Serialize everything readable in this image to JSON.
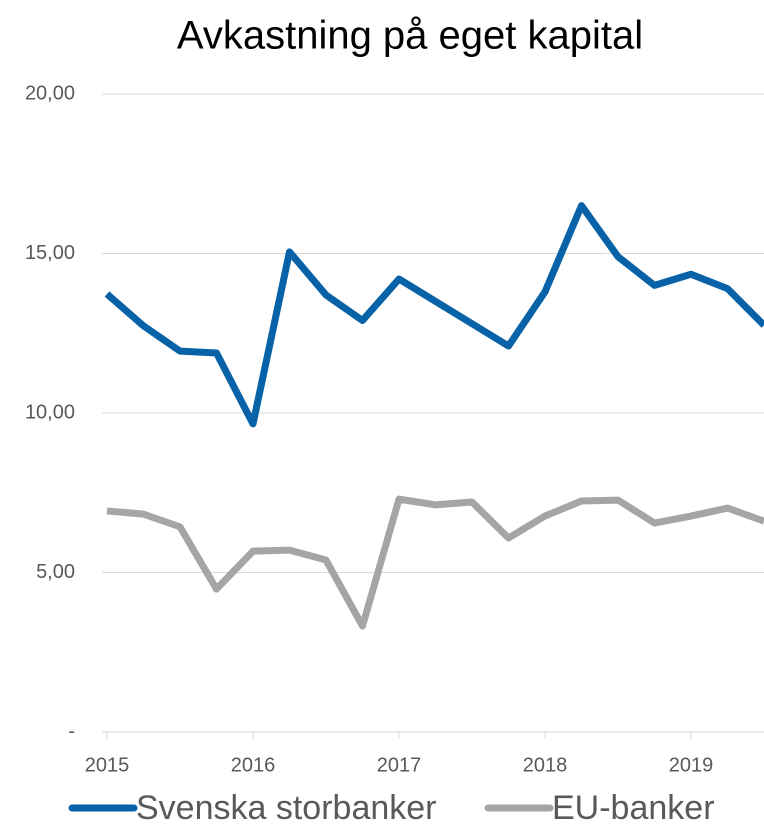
{
  "chart_data": {
    "type": "line",
    "title": "Avkastning på eget kapital",
    "x": [
      2015,
      2015.25,
      2015.5,
      2015.75,
      2016,
      2016.25,
      2016.5,
      2016.75,
      2017,
      2017.25,
      2017.5,
      2017.75,
      2018,
      2018.25,
      2018.5,
      2018.75,
      2019,
      2019.25,
      2019.5
    ],
    "xlim": [
      2015,
      2019.5
    ],
    "xticks": [
      2015,
      2016,
      2017,
      2018,
      2019
    ],
    "ylim": [
      0,
      20
    ],
    "yticks": [
      {
        "value": 0,
        "label": "-"
      },
      {
        "value": 5,
        "label": "5,00"
      },
      {
        "value": 10,
        "label": "10,00"
      },
      {
        "value": 15,
        "label": "15,00"
      },
      {
        "value": 20,
        "label": "20,00"
      }
    ],
    "grid": true,
    "legend": "bottom",
    "series": [
      {
        "name": "Svenska storbanker",
        "color": "#0862a8",
        "values": [
          13.73,
          12.73,
          11.94,
          11.88,
          9.66,
          15.05,
          13.7,
          12.9,
          14.2,
          13.5,
          12.8,
          12.1,
          13.8,
          16.5,
          14.9,
          14.0,
          14.35,
          13.9,
          12.75
        ]
      },
      {
        "name": "EU-banker",
        "color": "#a5a5a5",
        "values": [
          6.93,
          6.83,
          6.43,
          4.48,
          5.67,
          5.7,
          5.39,
          3.32,
          7.3,
          7.12,
          7.21,
          6.08,
          6.77,
          7.24,
          7.27,
          6.55,
          6.77,
          7.02,
          6.61
        ]
      }
    ]
  }
}
